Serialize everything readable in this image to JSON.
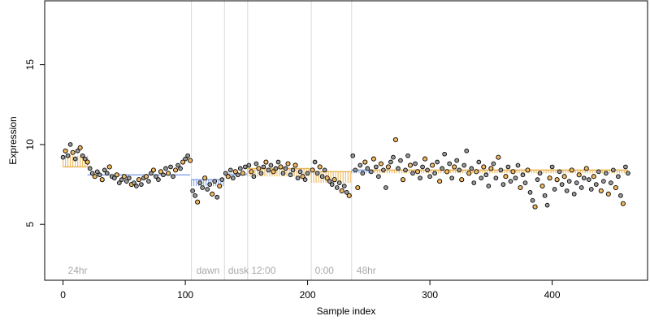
{
  "chart_data": {
    "type": "scatter",
    "title": "",
    "xlabel": "Sample index",
    "ylabel": "Expression",
    "xlim": [
      -15,
      478
    ],
    "ylim": [
      1.5,
      19
    ],
    "x_ticks": [
      0,
      100,
      200,
      300,
      400
    ],
    "y_ticks": [
      5,
      10,
      15
    ],
    "grid": false,
    "phase_lines": [
      105,
      132,
      151,
      203,
      236
    ],
    "phase_labels": [
      {
        "x": 2,
        "text": "24hr"
      },
      {
        "x": 107,
        "text": "dawn"
      },
      {
        "x": 133,
        "text": "dusk"
      },
      {
        "x": 152,
        "text": "12:00"
      },
      {
        "x": 204,
        "text": "0:00"
      },
      {
        "x": 238,
        "text": "48hr"
      }
    ],
    "segments": [
      {
        "start": 0,
        "end": 20,
        "baseline": 8.6,
        "level": 9.3,
        "color": "#e8a838"
      },
      {
        "start": 20,
        "end": 104,
        "baseline": 8.1,
        "level": 8.1,
        "color": "#6f93e0"
      },
      {
        "start": 105,
        "end": 131,
        "baseline": 7.8,
        "level": 7.4,
        "color": "#6f93e0"
      },
      {
        "start": 132,
        "end": 150,
        "baseline": 8.1,
        "level": 8.2,
        "color": "#6f93e0"
      },
      {
        "start": 151,
        "end": 202,
        "baseline": 8.5,
        "level": 8.0,
        "color": "#e8a838"
      },
      {
        "start": 203,
        "end": 235,
        "baseline": 8.3,
        "level": 7.6,
        "color": "#e8a838"
      },
      {
        "start": 236,
        "end": 250,
        "baseline": 8.4,
        "level": 8.2,
        "color": "#6f93e0"
      },
      {
        "start": 251,
        "end": 462,
        "baseline": 8.4,
        "level": 8.2,
        "color": "#e8a838"
      }
    ],
    "series": [
      {
        "point_fill_primary": "#000000",
        "point_fill_secondary": "#f0b860",
        "points": [
          [
            0,
            9.2
          ],
          [
            2,
            9.6
          ],
          [
            4,
            9.3
          ],
          [
            6,
            10.0
          ],
          [
            8,
            9.5
          ],
          [
            10,
            9.1
          ],
          [
            12,
            9.6
          ],
          [
            14,
            9.8
          ],
          [
            16,
            9.3
          ],
          [
            18,
            9.1
          ],
          [
            20,
            8.9
          ],
          [
            22,
            8.5
          ],
          [
            24,
            8.2
          ],
          [
            26,
            8.0
          ],
          [
            28,
            8.3
          ],
          [
            30,
            8.1
          ],
          [
            32,
            7.8
          ],
          [
            34,
            8.4
          ],
          [
            36,
            8.2
          ],
          [
            38,
            8.6
          ],
          [
            40,
            8.0
          ],
          [
            42,
            7.9
          ],
          [
            44,
            8.1
          ],
          [
            46,
            7.6
          ],
          [
            48,
            7.8
          ],
          [
            50,
            8.0
          ],
          [
            52,
            7.7
          ],
          [
            54,
            7.9
          ],
          [
            56,
            7.5
          ],
          [
            58,
            7.6
          ],
          [
            60,
            7.4
          ],
          [
            62,
            7.8
          ],
          [
            64,
            7.5
          ],
          [
            66,
            7.9
          ],
          [
            68,
            8.0
          ],
          [
            70,
            7.7
          ],
          [
            72,
            8.2
          ],
          [
            74,
            8.4
          ],
          [
            76,
            8.0
          ],
          [
            78,
            7.8
          ],
          [
            80,
            8.3
          ],
          [
            82,
            8.1
          ],
          [
            84,
            8.5
          ],
          [
            86,
            8.2
          ],
          [
            88,
            8.6
          ],
          [
            90,
            8.0
          ],
          [
            92,
            8.4
          ],
          [
            94,
            8.7
          ],
          [
            96,
            8.5
          ],
          [
            98,
            8.9
          ],
          [
            100,
            9.1
          ],
          [
            102,
            9.3
          ],
          [
            104,
            9.0
          ],
          [
            106,
            7.1
          ],
          [
            108,
            6.8
          ],
          [
            110,
            6.4
          ],
          [
            112,
            7.6
          ],
          [
            114,
            7.3
          ],
          [
            116,
            7.9
          ],
          [
            118,
            7.2
          ],
          [
            120,
            7.5
          ],
          [
            122,
            6.9
          ],
          [
            124,
            7.7
          ],
          [
            126,
            6.7
          ],
          [
            128,
            7.4
          ],
          [
            130,
            7.8
          ],
          [
            133,
            8.2
          ],
          [
            135,
            8.0
          ],
          [
            137,
            8.4
          ],
          [
            139,
            7.9
          ],
          [
            141,
            8.3
          ],
          [
            143,
            8.1
          ],
          [
            145,
            8.5
          ],
          [
            147,
            8.2
          ],
          [
            149,
            8.6
          ],
          [
            152,
            8.7
          ],
          [
            154,
            8.3
          ],
          [
            156,
            8.0
          ],
          [
            158,
            8.8
          ],
          [
            160,
            8.5
          ],
          [
            162,
            8.2
          ],
          [
            164,
            8.6
          ],
          [
            166,
            8.9
          ],
          [
            168,
            8.4
          ],
          [
            170,
            8.7
          ],
          [
            172,
            8.3
          ],
          [
            174,
            8.5
          ],
          [
            176,
            8.9
          ],
          [
            178,
            8.6
          ],
          [
            180,
            8.2
          ],
          [
            182,
            8.5
          ],
          [
            184,
            8.8
          ],
          [
            186,
            8.1
          ],
          [
            188,
            8.4
          ],
          [
            190,
            8.7
          ],
          [
            192,
            7.9
          ],
          [
            194,
            8.3
          ],
          [
            196,
            8.0
          ],
          [
            198,
            7.8
          ],
          [
            200,
            8.2
          ],
          [
            204,
            8.4
          ],
          [
            206,
            8.9
          ],
          [
            208,
            8.2
          ],
          [
            210,
            8.6
          ],
          [
            212,
            8.0
          ],
          [
            214,
            8.4
          ],
          [
            216,
            7.9
          ],
          [
            218,
            7.7
          ],
          [
            220,
            7.5
          ],
          [
            222,
            7.8
          ],
          [
            224,
            7.3
          ],
          [
            226,
            7.6
          ],
          [
            228,
            7.1
          ],
          [
            230,
            7.4
          ],
          [
            232,
            7.0
          ],
          [
            234,
            6.8
          ],
          [
            237,
            9.3
          ],
          [
            239,
            8.4
          ],
          [
            241,
            7.3
          ],
          [
            243,
            8.7
          ],
          [
            245,
            8.2
          ],
          [
            247,
            8.9
          ],
          [
            249,
            8.5
          ],
          [
            252,
            8.3
          ],
          [
            254,
            9.1
          ],
          [
            256,
            8.6
          ],
          [
            258,
            8.0
          ],
          [
            260,
            8.8
          ],
          [
            262,
            8.4
          ],
          [
            264,
            7.3
          ],
          [
            266,
            8.6
          ],
          [
            268,
            8.9
          ],
          [
            270,
            9.2
          ],
          [
            272,
            10.3
          ],
          [
            274,
            8.5
          ],
          [
            276,
            9.0
          ],
          [
            278,
            7.8
          ],
          [
            280,
            8.4
          ],
          [
            282,
            9.3
          ],
          [
            284,
            8.7
          ],
          [
            286,
            8.2
          ],
          [
            288,
            8.8
          ],
          [
            290,
            8.3
          ],
          [
            292,
            7.9
          ],
          [
            294,
            8.6
          ],
          [
            296,
            9.1
          ],
          [
            298,
            8.4
          ],
          [
            300,
            8.0
          ],
          [
            302,
            8.7
          ],
          [
            304,
            8.2
          ],
          [
            306,
            8.9
          ],
          [
            308,
            7.7
          ],
          [
            310,
            8.5
          ],
          [
            312,
            9.4
          ],
          [
            314,
            8.3
          ],
          [
            316,
            8.8
          ],
          [
            318,
            7.9
          ],
          [
            320,
            8.6
          ],
          [
            322,
            9.0
          ],
          [
            324,
            8.4
          ],
          [
            326,
            7.8
          ],
          [
            328,
            8.7
          ],
          [
            330,
            9.6
          ],
          [
            332,
            8.2
          ],
          [
            334,
            8.5
          ],
          [
            336,
            7.6
          ],
          [
            338,
            8.3
          ],
          [
            340,
            8.9
          ],
          [
            342,
            7.9
          ],
          [
            344,
            8.6
          ],
          [
            346,
            8.1
          ],
          [
            348,
            7.4
          ],
          [
            350,
            8.5
          ],
          [
            352,
            8.8
          ],
          [
            354,
            7.9
          ],
          [
            356,
            9.2
          ],
          [
            358,
            8.4
          ],
          [
            360,
            7.5
          ],
          [
            362,
            8.0
          ],
          [
            364,
            8.6
          ],
          [
            366,
            7.7
          ],
          [
            368,
            8.3
          ],
          [
            370,
            7.9
          ],
          [
            372,
            8.7
          ],
          [
            374,
            7.3
          ],
          [
            376,
            8.1
          ],
          [
            378,
            7.6
          ],
          [
            380,
            8.4
          ],
          [
            382,
            7.0
          ],
          [
            384,
            6.5
          ],
          [
            386,
            6.1
          ],
          [
            388,
            7.8
          ],
          [
            390,
            8.2
          ],
          [
            392,
            7.4
          ],
          [
            394,
            6.8
          ],
          [
            396,
            6.2
          ],
          [
            398,
            7.9
          ],
          [
            400,
            8.6
          ],
          [
            402,
            7.2
          ],
          [
            404,
            7.8
          ],
          [
            406,
            8.3
          ],
          [
            408,
            7.5
          ],
          [
            410,
            8.0
          ],
          [
            412,
            7.1
          ],
          [
            414,
            7.7
          ],
          [
            416,
            8.4
          ],
          [
            418,
            6.9
          ],
          [
            420,
            7.6
          ],
          [
            422,
            8.1
          ],
          [
            424,
            7.3
          ],
          [
            426,
            7.9
          ],
          [
            428,
            8.5
          ],
          [
            430,
            7.8
          ],
          [
            432,
            7.2
          ],
          [
            434,
            8.0
          ],
          [
            436,
            7.5
          ],
          [
            438,
            8.3
          ],
          [
            440,
            7.1
          ],
          [
            442,
            7.7
          ],
          [
            444,
            8.2
          ],
          [
            446,
            6.9
          ],
          [
            448,
            7.6
          ],
          [
            450,
            8.4
          ],
          [
            452,
            7.3
          ],
          [
            454,
            8.0
          ],
          [
            456,
            6.8
          ],
          [
            458,
            6.3
          ],
          [
            460,
            8.6
          ],
          [
            462,
            8.2
          ]
        ]
      }
    ]
  }
}
